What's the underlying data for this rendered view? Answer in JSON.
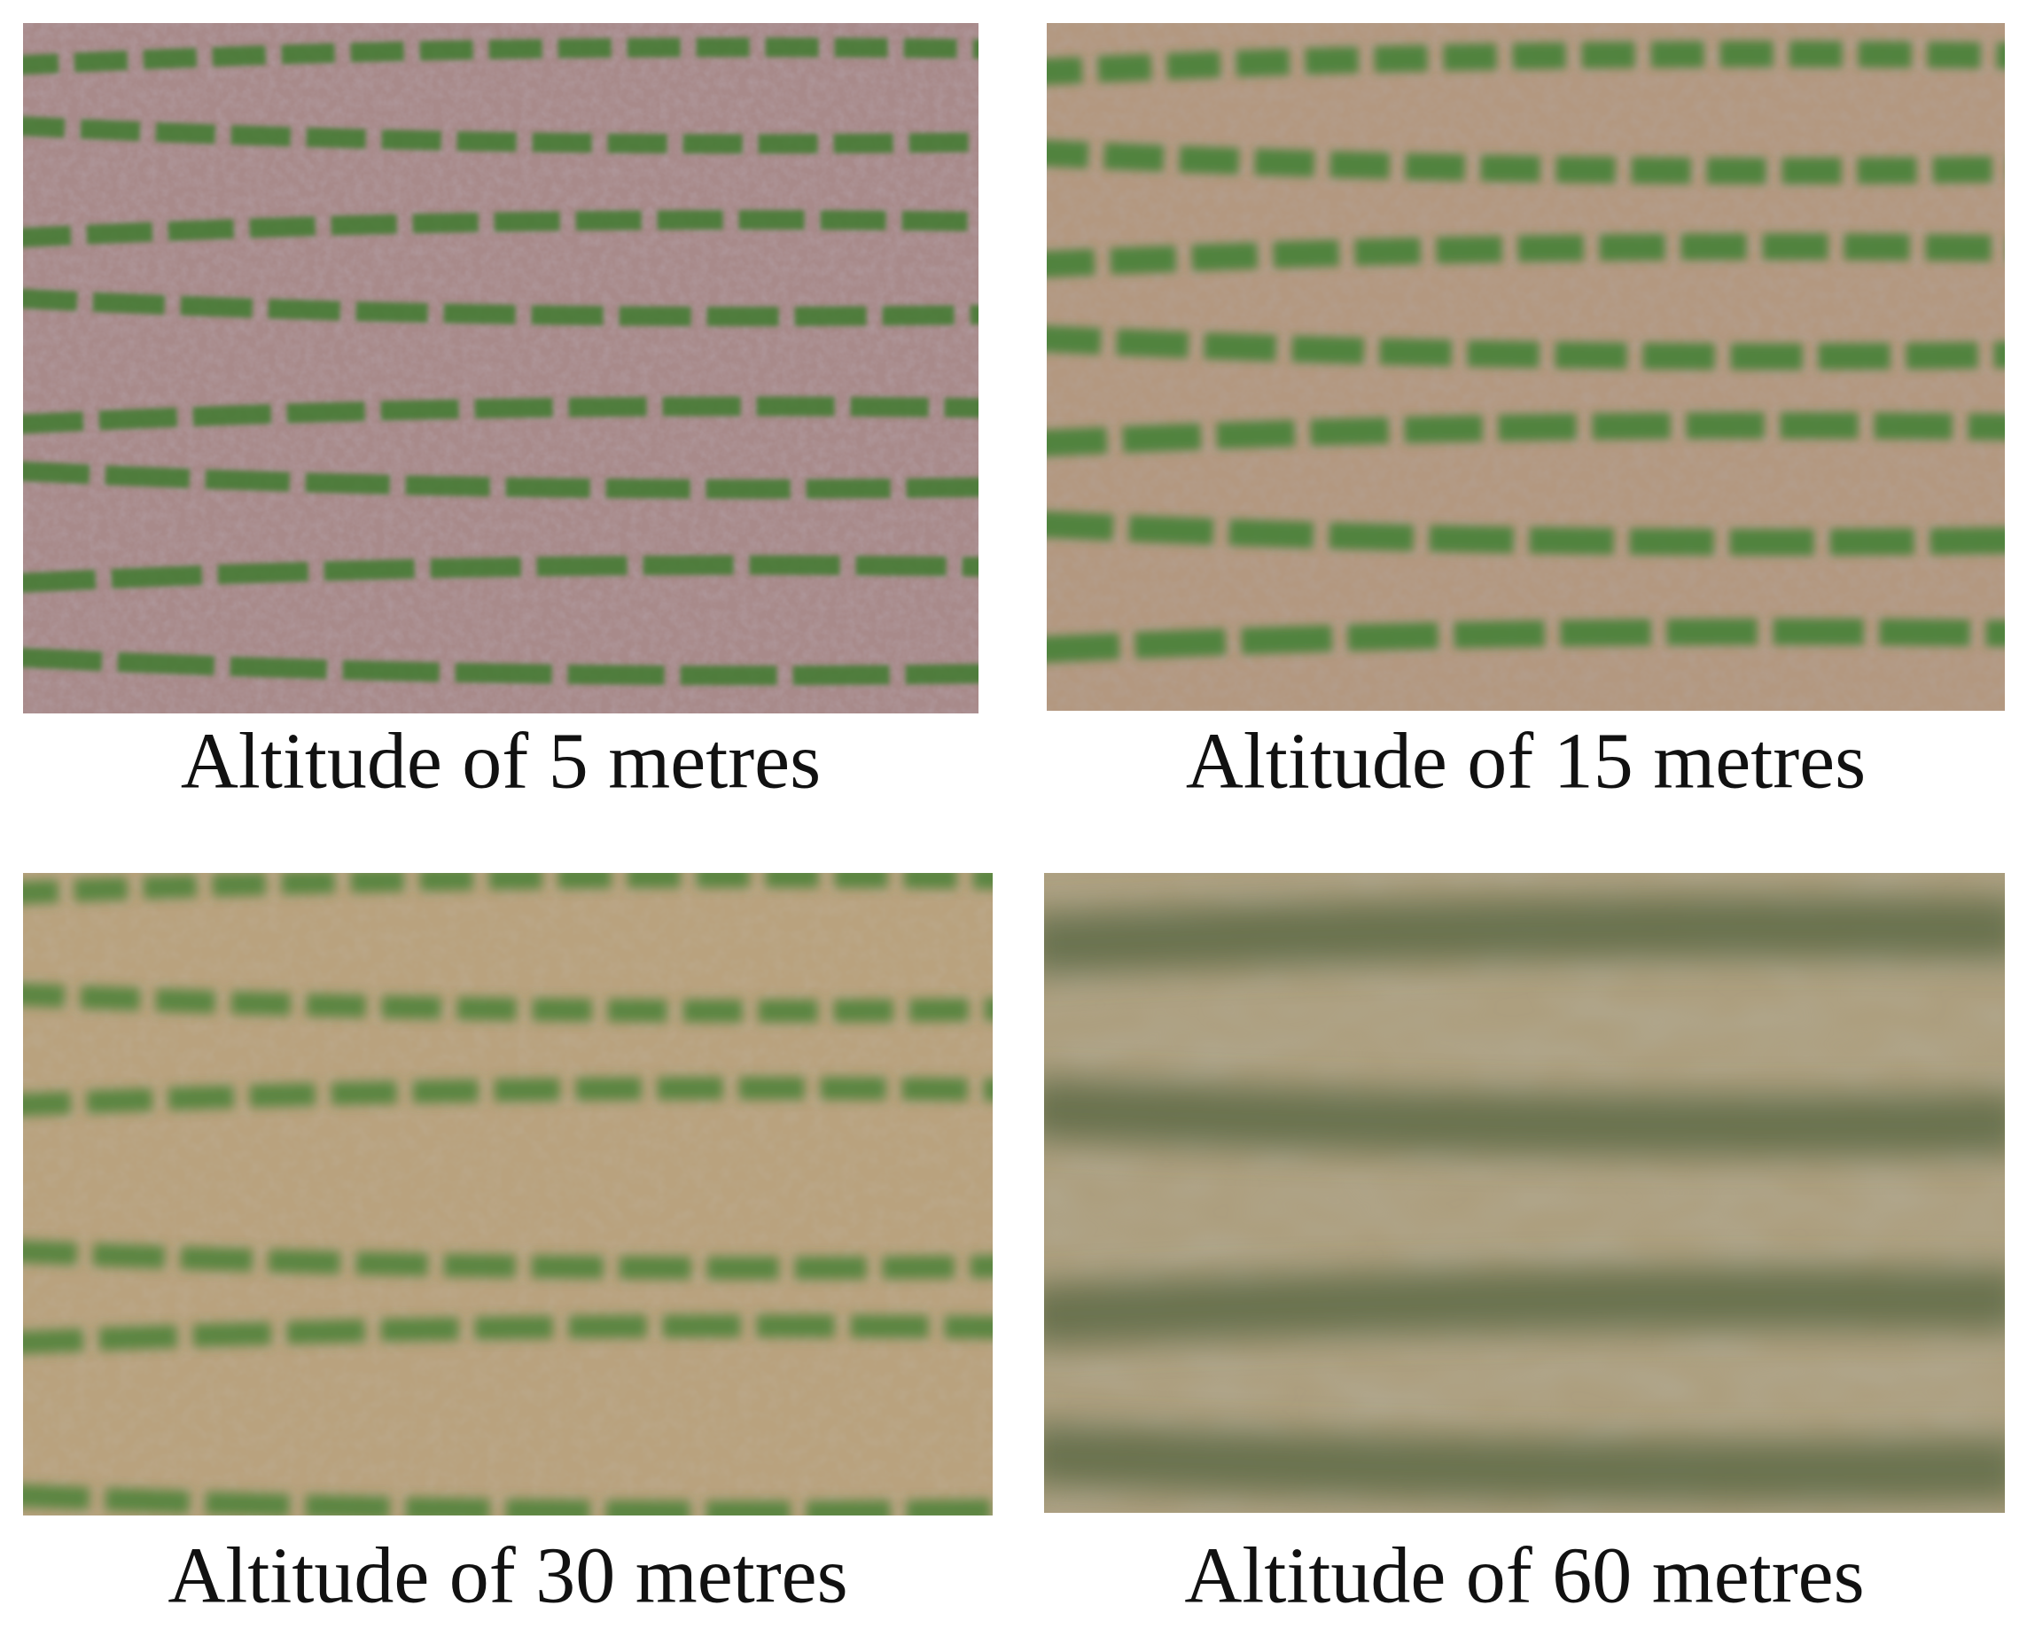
{
  "panels": [
    {
      "caption": "Altitude of 5 metres"
    },
    {
      "caption": "Altitude of 15 metres"
    },
    {
      "caption": "Altitude of 30 metres"
    },
    {
      "caption": "Altitude of 60 metres"
    }
  ]
}
